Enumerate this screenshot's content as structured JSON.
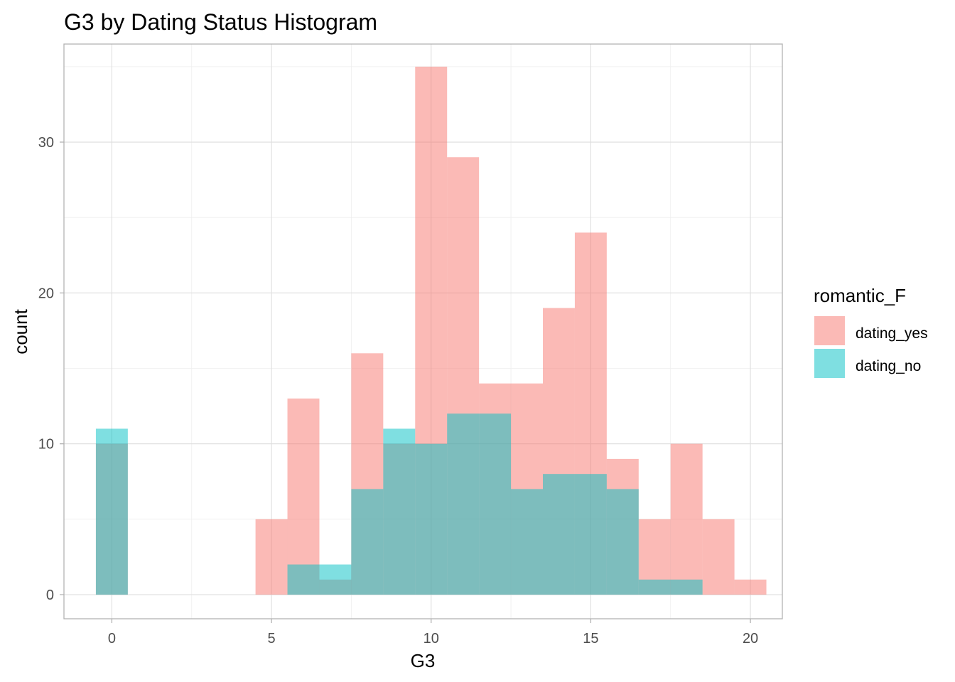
{
  "chart_data": {
    "type": "bar",
    "subtype": "overlapping-histogram",
    "title": "G3 by Dating Status Histogram",
    "xlabel": "G3",
    "ylabel": "count",
    "xlim": [
      -1.5,
      21
    ],
    "ylim": [
      -1.6,
      36.5
    ],
    "x_ticks": [
      0,
      5,
      10,
      15,
      20
    ],
    "y_ticks": [
      0,
      10,
      20,
      30
    ],
    "grid": true,
    "legend": {
      "title": "romantic_F",
      "position": "right"
    },
    "bin_width": 1,
    "x": [
      0,
      1,
      2,
      3,
      4,
      5,
      6,
      7,
      8,
      9,
      10,
      11,
      12,
      13,
      14,
      15,
      16,
      17,
      18,
      19,
      20
    ],
    "series": [
      {
        "name": "dating_yes",
        "color": "#F8766D",
        "opacity": 0.5,
        "values": [
          10,
          0,
          0,
          0,
          0,
          5,
          13,
          1,
          16,
          10,
          35,
          29,
          14,
          14,
          19,
          24,
          9,
          5,
          10,
          5,
          1
        ]
      },
      {
        "name": "dating_no",
        "color": "#00BFC4",
        "opacity": 0.5,
        "values": [
          11,
          0,
          0,
          0,
          0,
          0,
          2,
          2,
          7,
          11,
          10,
          12,
          12,
          7,
          8,
          8,
          7,
          1,
          1,
          0,
          0
        ]
      }
    ]
  }
}
